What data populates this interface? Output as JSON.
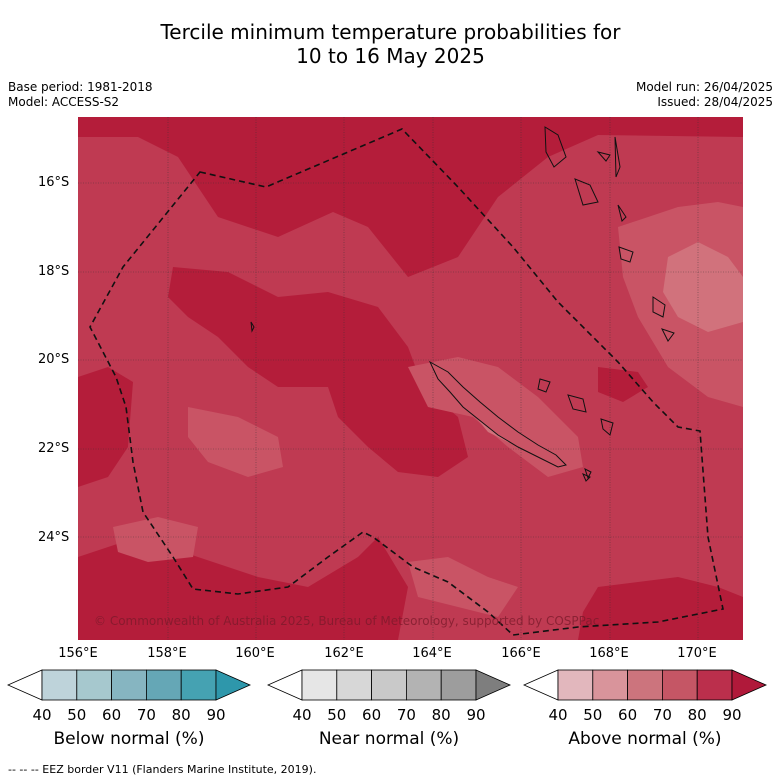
{
  "title": {
    "line1": "Tercile minimum temperature probabilities for",
    "line2": "10 to 16 May 2025"
  },
  "meta": {
    "base_period": "Base period: 1981-2018",
    "model": "Model: ACCESS-S2",
    "model_run": "Model run: 26/04/2025",
    "issued": "Issued: 28/04/2025"
  },
  "map": {
    "region": "New Caledonia",
    "lat_labels": [
      "16°S",
      "18°S",
      "20°S",
      "22°S",
      "24°S"
    ],
    "lon_labels": [
      "156°E",
      "158°E",
      "160°E",
      "162°E",
      "164°E",
      "166°E",
      "168°E",
      "170°E"
    ],
    "copyright": "© Commonwealth of Australia 2025, Bureau of Meteorology, supported by COSPPac",
    "fill_colors": {
      "above_90": "#b41d3a",
      "above_80": "#bf3a52",
      "above_70": "#c95465",
      "above_60": "#d1727c"
    }
  },
  "legend": {
    "ticks": [
      "40",
      "50",
      "60",
      "70",
      "80",
      "90"
    ],
    "below": {
      "label": "Below normal (%)",
      "colors": [
        "#bed3da",
        "#a6c8ce",
        "#86b5c1",
        "#65a7b6",
        "#45a2b2"
      ],
      "high_color": "#2e97ab"
    },
    "near": {
      "label": "Near normal (%)",
      "colors": [
        "#e6e6e6",
        "#d7d7d7",
        "#c9c9c9",
        "#b3b3b3",
        "#9d9d9d"
      ],
      "high_color": "#7e7e7e"
    },
    "above": {
      "label": "Above normal (%)",
      "colors": [
        "#e2b7bd",
        "#d9949b",
        "#cc747d",
        "#c55665",
        "#bb2f4c"
      ],
      "high_color": "#b0193a"
    }
  },
  "footer": "-- -- -- EEZ border V11 (Flanders Marine Institute, 2019)."
}
